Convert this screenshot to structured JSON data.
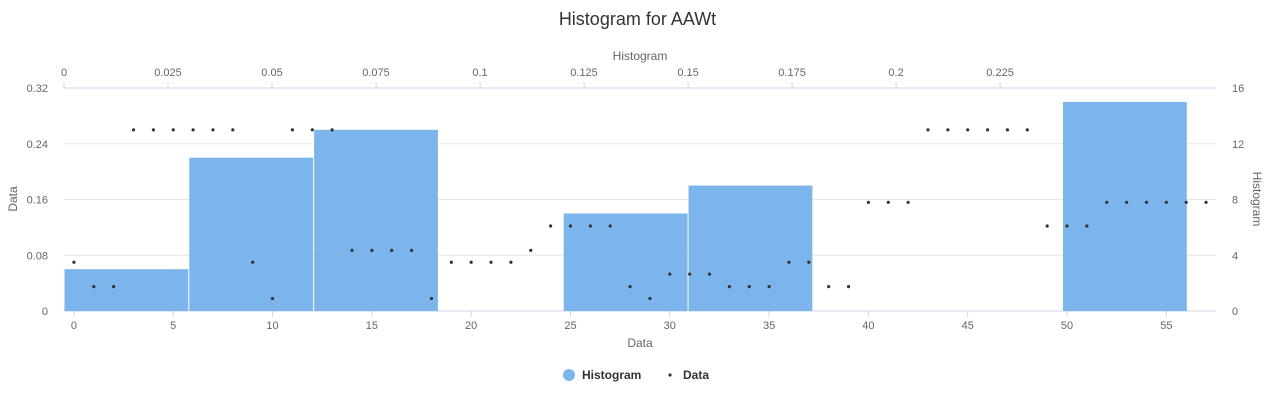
{
  "chart_data": {
    "title": "Histogram for AAWt",
    "type": "histogram+scatter",
    "x_bottom": {
      "label": "Data",
      "range": [
        -0.5,
        57.5
      ],
      "ticks": [
        0,
        5,
        10,
        15,
        20,
        25,
        30,
        35,
        40,
        45,
        50,
        55
      ]
    },
    "x_top": {
      "label": "Histogram",
      "range": [
        0,
        0.2769
      ],
      "ticks": [
        "0",
        "0.025",
        "0.05",
        "0.075",
        "0.1",
        "0.125",
        "0.15",
        "0.175",
        "0.2",
        "0.225"
      ],
      "tick_values": [
        0,
        0.025,
        0.05,
        0.075,
        0.1,
        0.125,
        0.15,
        0.175,
        0.2,
        0.225
      ]
    },
    "y_left": {
      "label": "Data",
      "range": [
        0,
        0.32
      ],
      "ticks": [
        "0",
        "0.08",
        "0.16",
        "0.24",
        "0.32"
      ],
      "tick_values": [
        0,
        0.08,
        0.16,
        0.24,
        0.32
      ]
    },
    "y_right": {
      "label": "Histogram",
      "range": [
        0,
        16
      ],
      "ticks": [
        "0",
        "4",
        "8",
        "12",
        "16"
      ],
      "tick_values": [
        0,
        4,
        8,
        12,
        16
      ]
    },
    "series": [
      {
        "name": "Histogram",
        "type": "column",
        "color": "#7cb5ec",
        "bins": [
          {
            "x_start": 0,
            "x_end": 0.03,
            "value": 3
          },
          {
            "x_start": 0.03,
            "x_end": 0.06,
            "value": 11
          },
          {
            "x_start": 0.06,
            "x_end": 0.09,
            "value": 13
          },
          {
            "x_start": 0.12,
            "x_end": 0.15,
            "value": 7
          },
          {
            "x_start": 0.15,
            "x_end": 0.18,
            "value": 9
          },
          {
            "x_start": 0.24,
            "x_end": 0.27,
            "value": 15
          }
        ]
      },
      {
        "name": "Data",
        "type": "scatter",
        "color": "#333333",
        "x": [
          0,
          1,
          2,
          3,
          4,
          5,
          6,
          7,
          8,
          9,
          10,
          11,
          12,
          13,
          14,
          15,
          16,
          17,
          18,
          19,
          20,
          21,
          22,
          23,
          24,
          25,
          26,
          27,
          28,
          29,
          30,
          31,
          32,
          33,
          34,
          35,
          36,
          37,
          38,
          39,
          40,
          41,
          42,
          43,
          44,
          45,
          46,
          47,
          48,
          49,
          50,
          51,
          52,
          53,
          54,
          55,
          56,
          57
        ],
        "y": [
          0.07,
          0.035,
          0.035,
          0.26,
          0.26,
          0.26,
          0.26,
          0.26,
          0.26,
          0.07,
          0.018,
          0.26,
          0.26,
          0.26,
          0.087,
          0.087,
          0.087,
          0.087,
          0.018,
          0.07,
          0.07,
          0.07,
          0.07,
          0.087,
          0.122,
          0.122,
          0.122,
          0.122,
          0.035,
          0.018,
          0.053,
          0.053,
          0.053,
          0.035,
          0.035,
          0.035,
          0.07,
          0.07,
          0.035,
          0.035,
          0.156,
          0.156,
          0.156,
          0.26,
          0.26,
          0.26,
          0.26,
          0.26,
          0.26,
          0.122,
          0.122,
          0.122,
          0.156,
          0.156,
          0.156,
          0.156,
          0.156,
          0.156
        ]
      }
    ],
    "legend": {
      "position": "bottom-center",
      "items": [
        "Histogram",
        "Data"
      ]
    },
    "grid": true
  }
}
